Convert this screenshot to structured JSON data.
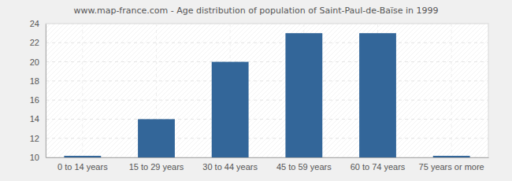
{
  "chart_data": {
    "type": "bar",
    "title": "www.map-france.com - Age distribution of population of Saint-Paul-de-Baïse in 1999",
    "categories": [
      "0 to 14 years",
      "15 to 29 years",
      "30 to 44 years",
      "45 to 59 years",
      "60 to 74 years",
      "75 years or more"
    ],
    "values": [
      10,
      14,
      20,
      23,
      23,
      10
    ],
    "color": "#336699",
    "ylim": [
      10,
      24
    ],
    "yticks": [
      10,
      12,
      14,
      16,
      18,
      20,
      22,
      24
    ],
    "grid": true
  }
}
